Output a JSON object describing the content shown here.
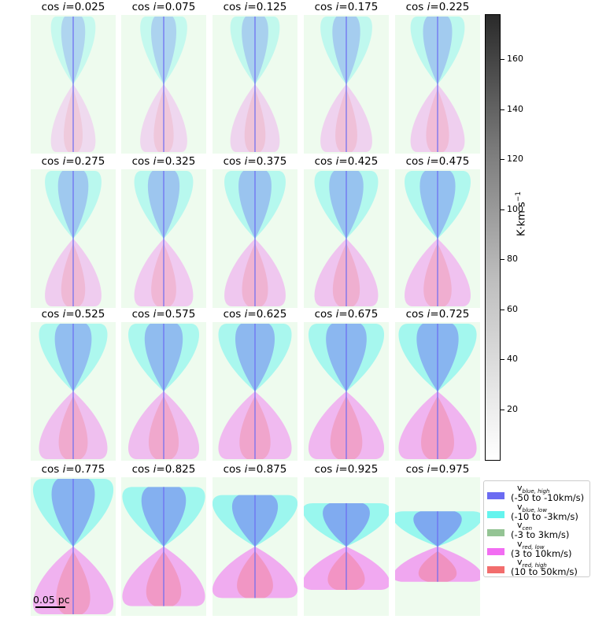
{
  "figure": {
    "panels": [
      {
        "label": "cos",
        "var": "i",
        "value": "=0.025"
      },
      {
        "label": "cos",
        "var": "i",
        "value": "=0.075"
      },
      {
        "label": "cos",
        "var": "i",
        "value": "=0.125"
      },
      {
        "label": "cos",
        "var": "i",
        "value": "=0.175"
      },
      {
        "label": "cos",
        "var": "i",
        "value": "=0.225"
      },
      {
        "label": "cos",
        "var": "i",
        "value": "=0.275"
      },
      {
        "label": "cos",
        "var": "i",
        "value": "=0.325"
      },
      {
        "label": "cos",
        "var": "i",
        "value": "=0.375"
      },
      {
        "label": "cos",
        "var": "i",
        "value": "=0.425"
      },
      {
        "label": "cos",
        "var": "i",
        "value": "=0.475"
      },
      {
        "label": "cos",
        "var": "i",
        "value": "=0.525"
      },
      {
        "label": "cos",
        "var": "i",
        "value": "=0.575"
      },
      {
        "label": "cos",
        "var": "i",
        "value": "=0.625"
      },
      {
        "label": "cos",
        "var": "i",
        "value": "=0.675"
      },
      {
        "label": "cos",
        "var": "i",
        "value": "=0.725"
      },
      {
        "label": "cos",
        "var": "i",
        "value": "=0.775"
      },
      {
        "label": "cos",
        "var": "i",
        "value": "=0.825"
      },
      {
        "label": "cos",
        "var": "i",
        "value": "=0.875"
      },
      {
        "label": "cos",
        "var": "i",
        "value": "=0.925"
      },
      {
        "label": "cos",
        "var": "i",
        "value": "=0.975"
      }
    ],
    "scale_bar": "0.05 pc",
    "colorbar": {
      "label": "K·km s",
      "label_exp": "−1",
      "ticks": [
        "20",
        "40",
        "60",
        "80",
        "100",
        "120",
        "140",
        "160"
      ],
      "tick_values": [
        20,
        40,
        60,
        80,
        100,
        120,
        140,
        160
      ],
      "range": [
        0,
        178
      ]
    },
    "legend": [
      {
        "name": "v",
        "sub": "blue, high",
        "range": "(-50 to -10km/s)",
        "color": "#6b6bf2"
      },
      {
        "name": "v",
        "sub": "blue, low",
        "range": "(-10 to -3km/s)",
        "color": "#64f4ee"
      },
      {
        "name": "v",
        "sub": "cen",
        "range": "(-3 to 3km/s)",
        "color": "#94c494"
      },
      {
        "name": "v",
        "sub": "red, low",
        "range": "(3 to 10km/s)",
        "color": "#f26df2"
      },
      {
        "name": "v",
        "sub": "red, high",
        "range": "(10 to 50km/s)",
        "color": "#f26d6d"
      }
    ],
    "colors": {
      "background_tint": "#eefbee",
      "blue_high": "#6b6bf2",
      "blue_low": "#64f4ee",
      "red_low": "#f26df2",
      "red_high": "#f26d6d"
    }
  }
}
